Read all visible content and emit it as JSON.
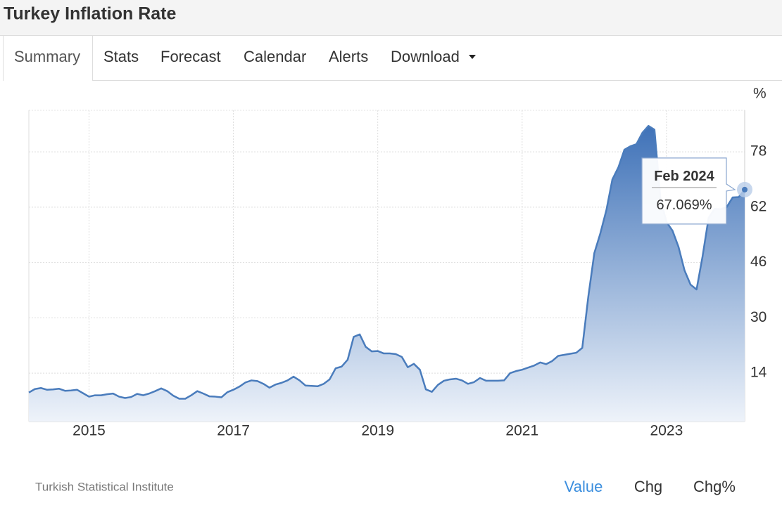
{
  "header": {
    "title": "Turkey Inflation Rate"
  },
  "tabs": [
    "Summary",
    "Stats",
    "Forecast",
    "Calendar",
    "Alerts",
    "Download"
  ],
  "chart_data": {
    "type": "area",
    "y_label": "%",
    "color": "#4a7cbc",
    "x": [
      "2014-03",
      "2014-04",
      "2014-05",
      "2014-06",
      "2014-07",
      "2014-08",
      "2014-09",
      "2014-10",
      "2014-11",
      "2014-12",
      "2015-01",
      "2015-02",
      "2015-03",
      "2015-04",
      "2015-05",
      "2015-06",
      "2015-07",
      "2015-08",
      "2015-09",
      "2015-10",
      "2015-11",
      "2015-12",
      "2016-01",
      "2016-02",
      "2016-03",
      "2016-04",
      "2016-05",
      "2016-06",
      "2016-07",
      "2016-08",
      "2016-09",
      "2016-10",
      "2016-11",
      "2016-12",
      "2017-01",
      "2017-02",
      "2017-03",
      "2017-04",
      "2017-05",
      "2017-06",
      "2017-07",
      "2017-08",
      "2017-09",
      "2017-10",
      "2017-11",
      "2017-12",
      "2018-01",
      "2018-02",
      "2018-03",
      "2018-04",
      "2018-05",
      "2018-06",
      "2018-07",
      "2018-08",
      "2018-09",
      "2018-10",
      "2018-11",
      "2018-12",
      "2019-01",
      "2019-02",
      "2019-03",
      "2019-04",
      "2019-05",
      "2019-06",
      "2019-07",
      "2019-08",
      "2019-09",
      "2019-10",
      "2019-11",
      "2019-12",
      "2020-01",
      "2020-02",
      "2020-03",
      "2020-04",
      "2020-05",
      "2020-06",
      "2020-07",
      "2020-08",
      "2020-09",
      "2020-10",
      "2020-11",
      "2020-12",
      "2021-01",
      "2021-02",
      "2021-03",
      "2021-04",
      "2021-05",
      "2021-06",
      "2021-07",
      "2021-08",
      "2021-09",
      "2021-10",
      "2021-11",
      "2021-12",
      "2022-01",
      "2022-02",
      "2022-03",
      "2022-04",
      "2022-05",
      "2022-06",
      "2022-07",
      "2022-08",
      "2022-09",
      "2022-10",
      "2022-11",
      "2022-12",
      "2023-01",
      "2023-02",
      "2023-03",
      "2023-04",
      "2023-05",
      "2023-06",
      "2023-07",
      "2023-08",
      "2023-09",
      "2023-10",
      "2023-11",
      "2023-12",
      "2024-01",
      "2024-02"
    ],
    "values": [
      8.4,
      9.4,
      9.7,
      9.2,
      9.3,
      9.5,
      8.9,
      9.0,
      9.2,
      8.2,
      7.2,
      7.6,
      7.6,
      7.9,
      8.1,
      7.2,
      6.8,
      7.1,
      8.0,
      7.6,
      8.1,
      8.8,
      9.6,
      8.8,
      7.5,
      6.6,
      6.6,
      7.6,
      8.8,
      8.1,
      7.3,
      7.2,
      7.0,
      8.5,
      9.2,
      10.1,
      11.3,
      11.9,
      11.7,
      10.9,
      9.8,
      10.7,
      11.2,
      11.9,
      13.0,
      11.9,
      10.4,
      10.3,
      10.2,
      10.9,
      12.2,
      15.4,
      15.9,
      17.9,
      24.5,
      25.2,
      21.6,
      20.3,
      20.4,
      19.7,
      19.7,
      19.5,
      18.7,
      15.7,
      16.7,
      15.0,
      9.3,
      8.6,
      10.6,
      11.8,
      12.2,
      12.4,
      11.9,
      10.9,
      11.4,
      12.6,
      11.8,
      11.8,
      11.8,
      11.9,
      14.0,
      14.6,
      15.0,
      15.6,
      16.2,
      17.1,
      16.6,
      17.5,
      19.0,
      19.3,
      19.6,
      19.9,
      21.3,
      36.1,
      48.7,
      54.4,
      61.1,
      70.0,
      73.5,
      78.6,
      79.6,
      80.2,
      83.5,
      85.5,
      84.4,
      64.3,
      57.7,
      55.2,
      50.5,
      43.7,
      39.6,
      38.2,
      47.8,
      58.9,
      61.5,
      61.4,
      62.0,
      64.8,
      64.9,
      67.069
    ],
    "xlim": [
      "2014-03",
      "2024-02"
    ],
    "xticks": [
      2015,
      2017,
      2019,
      2021,
      2023
    ],
    "ylim": [
      0,
      90
    ],
    "yticks": [
      14,
      30,
      46,
      62,
      78
    ],
    "grid": true,
    "tooltip": {
      "title": "Feb 2024",
      "text": "67.069%"
    }
  },
  "source": "Turkish Statistical Institute",
  "buttons": [
    "Value",
    "Chg",
    "Chg%"
  ]
}
